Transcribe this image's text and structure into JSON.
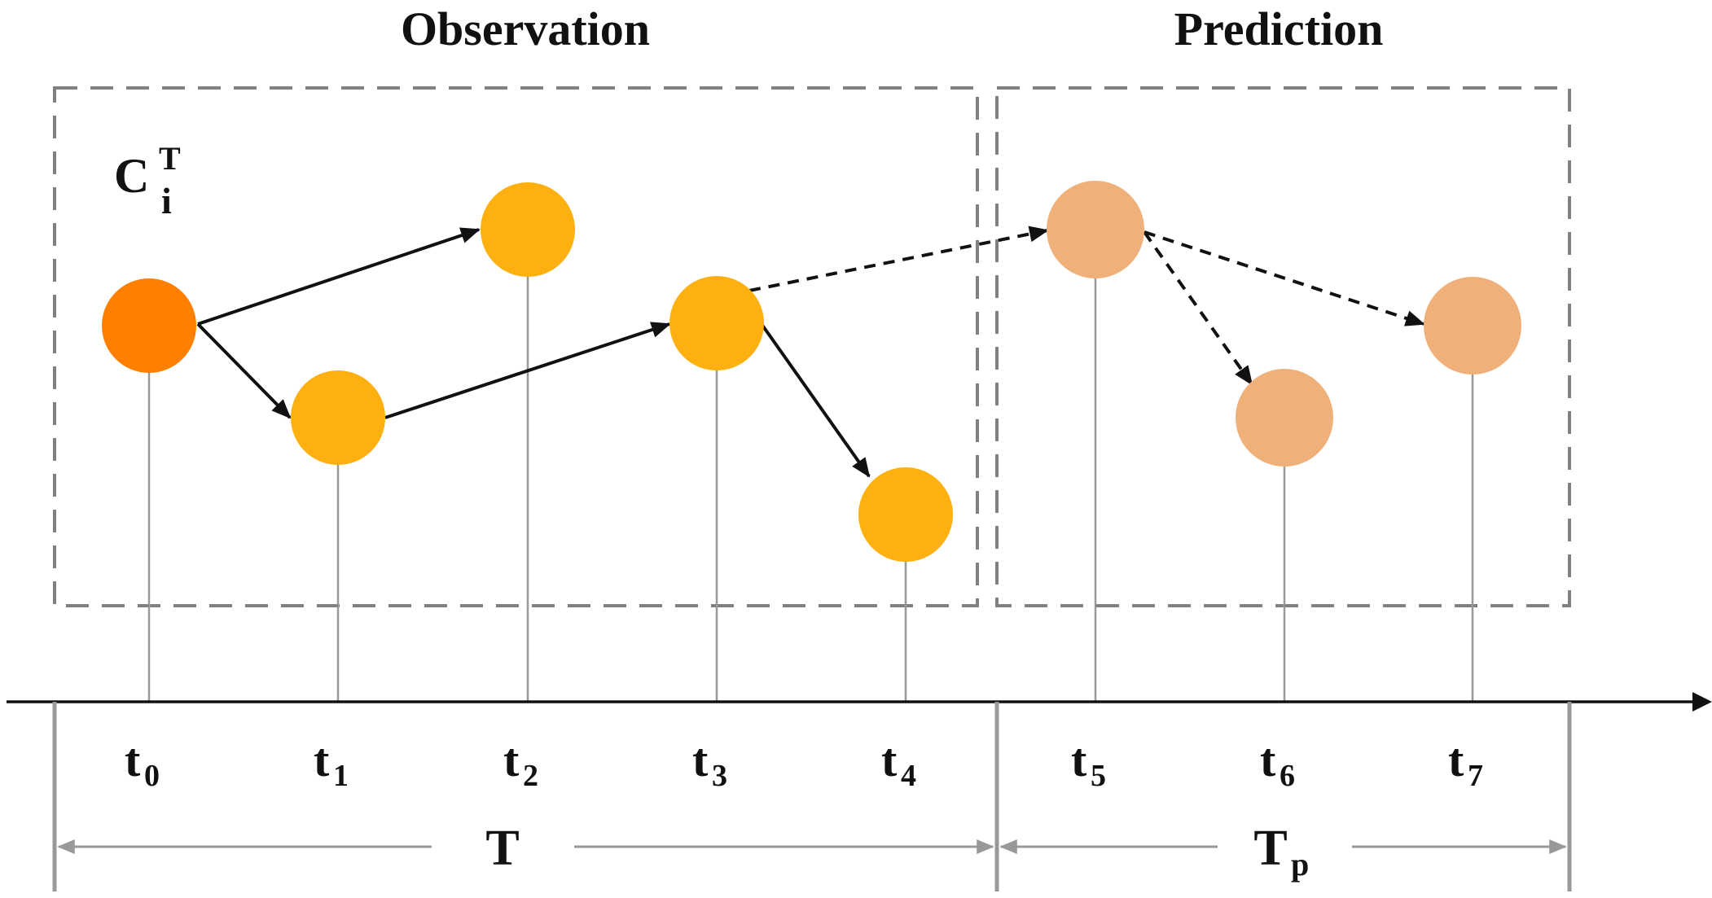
{
  "sections": {
    "observation": "Observation",
    "prediction": "Prediction"
  },
  "cluster_label": {
    "base": "C",
    "sup": "T",
    "sub": "i"
  },
  "time_labels": [
    {
      "base": "t",
      "sub": "0"
    },
    {
      "base": "t",
      "sub": "1"
    },
    {
      "base": "t",
      "sub": "2"
    },
    {
      "base": "t",
      "sub": "3"
    },
    {
      "base": "t",
      "sub": "4"
    },
    {
      "base": "t",
      "sub": "5"
    },
    {
      "base": "t",
      "sub": "6"
    },
    {
      "base": "t",
      "sub": "7"
    }
  ],
  "spans": {
    "observation": {
      "base": "T",
      "sub": ""
    },
    "prediction": {
      "base": "T",
      "sub": "p"
    }
  },
  "colors": {
    "start_node": "#FF7F00",
    "observed_node": "#FDB010",
    "predicted_node": "#F0B07A",
    "dashed_box": "#808080",
    "stem": "#999999",
    "arrow": "#111111",
    "span_arrow": "#999999"
  }
}
